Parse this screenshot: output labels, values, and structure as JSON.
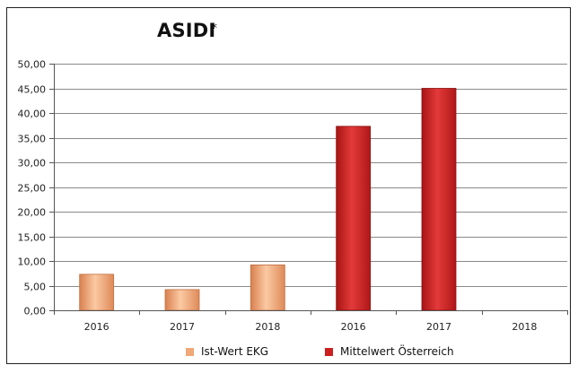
{
  "chart_data": {
    "type": "bar",
    "title": "ASIDI",
    "title_mark": "*",
    "categories": [
      "2016",
      "2017",
      "2018",
      "2016",
      "2017",
      "2018"
    ],
    "series": [
      {
        "name": "Ist-Wert EKG",
        "color": "#f0a878",
        "values": [
          7.3,
          4.2,
          9.2,
          null,
          null,
          null
        ]
      },
      {
        "name": "Mittelwert Österreich",
        "color": "#d42a2a",
        "values": [
          null,
          null,
          null,
          37.3,
          45.0,
          null
        ]
      }
    ],
    "ylim": [
      0,
      50
    ],
    "yticks": [
      "0,00",
      "5,00",
      "10,00",
      "15,00",
      "20,00",
      "25,00",
      "30,00",
      "35,00",
      "40,00",
      "45,00",
      "50,00"
    ],
    "grid": true,
    "legend_position": "bottom"
  }
}
